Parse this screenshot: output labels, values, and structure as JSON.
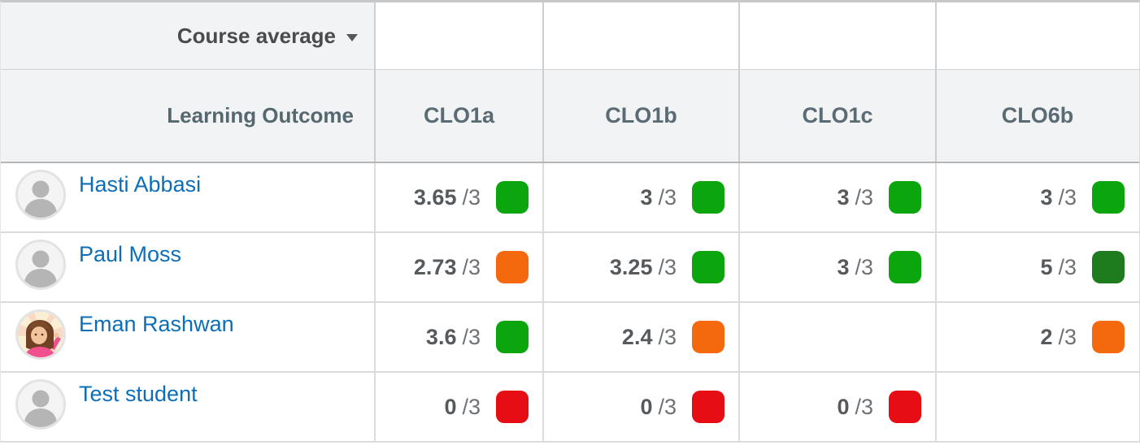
{
  "table": {
    "top_header": {
      "course_average_label": "Course average",
      "dropdown_icon": "caret-down-icon"
    },
    "header": {
      "row_label": "Learning Outcome",
      "outcomes": [
        "CLO1a",
        "CLO1b",
        "CLO1c",
        "CLO6b"
      ]
    },
    "score_denominator": "/3",
    "achievement_colors": {
      "exceeded": "#1e7b1e",
      "met": "#0ba60e",
      "approaching": "#f4690e",
      "not_met": "#e60d14"
    },
    "students": [
      {
        "name": "Hasti Abbasi",
        "avatar": "default-avatar",
        "scores": [
          {
            "value": "3.65",
            "level": "met"
          },
          {
            "value": "3",
            "level": "met"
          },
          {
            "value": "3",
            "level": "met"
          },
          {
            "value": "3",
            "level": "met"
          }
        ]
      },
      {
        "name": "Paul Moss",
        "avatar": "default-avatar",
        "scores": [
          {
            "value": "2.73",
            "level": "approaching"
          },
          {
            "value": "3.25",
            "level": "met"
          },
          {
            "value": "3",
            "level": "met"
          },
          {
            "value": "5",
            "level": "exceeded"
          }
        ]
      },
      {
        "name": "Eman Rashwan",
        "avatar": "photo-avatar",
        "scores": [
          {
            "value": "3.6",
            "level": "met"
          },
          {
            "value": "2.4",
            "level": "approaching"
          },
          null,
          {
            "value": "2",
            "level": "approaching"
          }
        ]
      },
      {
        "name": "Test student",
        "avatar": "default-avatar",
        "scores": [
          {
            "value": "0",
            "level": "not_met"
          },
          {
            "value": "0",
            "level": "not_met"
          },
          {
            "value": "0",
            "level": "not_met"
          },
          null
        ]
      }
    ]
  }
}
